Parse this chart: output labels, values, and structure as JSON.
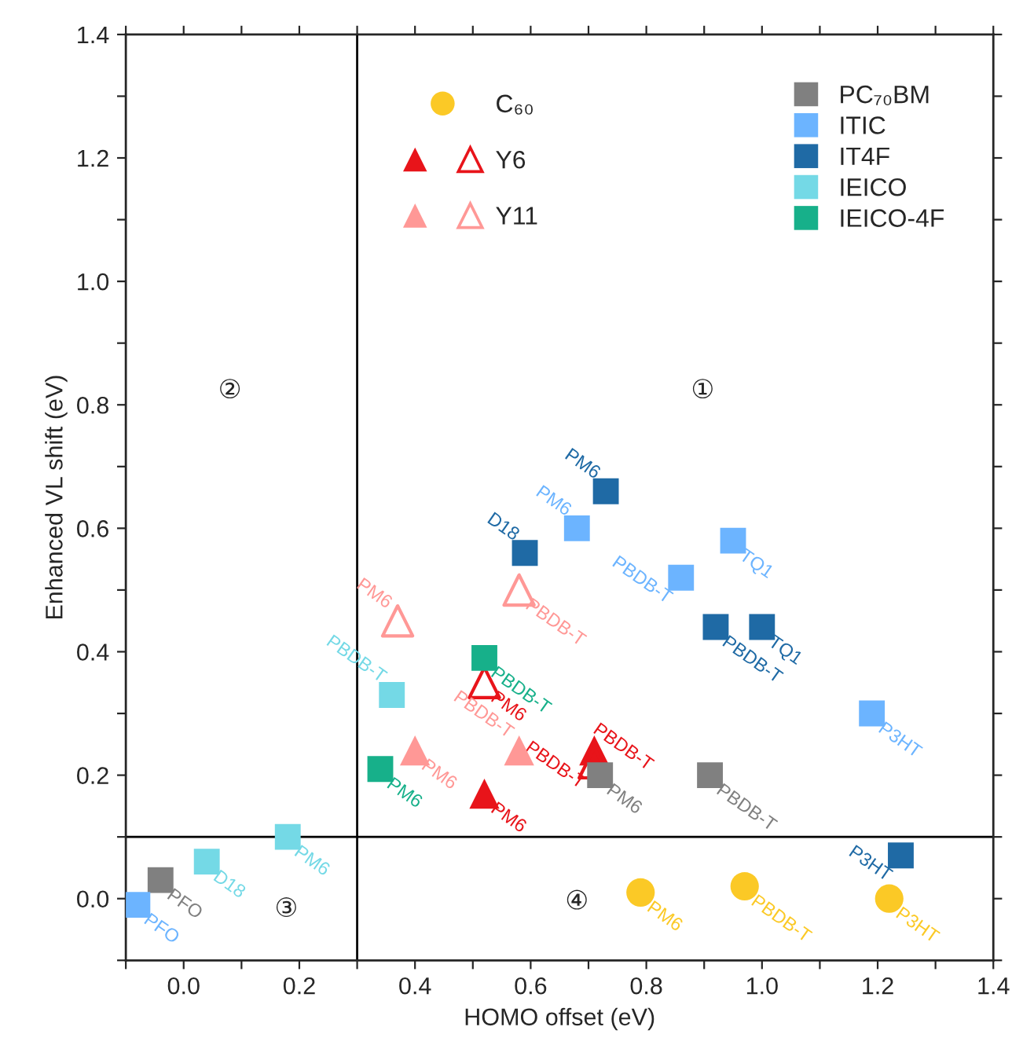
{
  "chart_data": {
    "type": "scatter",
    "xlabel": "HOMO offset (eV)",
    "ylabel": "Enhanced VL shift (eV)",
    "xlim": [
      -0.1,
      1.4
    ],
    "ylim": [
      -0.1,
      1.4
    ],
    "xticks": [
      {
        "value": -0.1,
        "label": null
      },
      {
        "value": 0,
        "label": "0.0"
      },
      {
        "value": 0.1,
        "label": null
      },
      {
        "value": 0.2,
        "label": "0.2"
      },
      {
        "value": 0.3,
        "label": null
      },
      {
        "value": 0.4,
        "label": "0.4"
      },
      {
        "value": 0.5,
        "label": null
      },
      {
        "value": 0.6,
        "label": "0.6"
      },
      {
        "value": 0.7,
        "label": null
      },
      {
        "value": 0.8,
        "label": "0.8"
      },
      {
        "value": 0.9,
        "label": null
      },
      {
        "value": 1.0,
        "label": "1.0"
      },
      {
        "value": 1.1,
        "label": null
      },
      {
        "value": 1.2,
        "label": "1.2"
      },
      {
        "value": 1.3,
        "label": null
      },
      {
        "value": 1.4,
        "label": "1.4"
      }
    ],
    "yticks": [
      {
        "value": -0.1,
        "label": null
      },
      {
        "value": 0,
        "label": "0.0"
      },
      {
        "value": 0.1,
        "label": null
      },
      {
        "value": 0.2,
        "label": "0.2"
      },
      {
        "value": 0.3,
        "label": null
      },
      {
        "value": 0.4,
        "label": "0.4"
      },
      {
        "value": 0.5,
        "label": null
      },
      {
        "value": 0.6,
        "label": "0.6"
      },
      {
        "value": 0.7,
        "label": null
      },
      {
        "value": 0.8,
        "label": "0.8"
      },
      {
        "value": 0.9,
        "label": null
      },
      {
        "value": 1.0,
        "label": "1.0"
      },
      {
        "value": 1.1,
        "label": null
      },
      {
        "value": 1.2,
        "label": "1.2"
      },
      {
        "value": 1.3,
        "label": null
      },
      {
        "value": 1.4,
        "label": "1.4"
      }
    ],
    "grid": false,
    "legend": "top right",
    "ref_lines": [
      {
        "axis": "x",
        "value": 0.3,
        "color": "#000000"
      },
      {
        "axis": "y",
        "value": 0.1,
        "color": "#000000"
      }
    ],
    "annotations": [
      "①",
      "②",
      "③",
      "④"
    ],
    "series": [
      {
        "name": "C₆₀",
        "color": "#fbc926",
        "marker": "circle",
        "x": [
          0.79,
          0.97,
          1.22
        ],
        "values": [
          0.01,
          0.02,
          0.0
        ],
        "value_labels": [
          "PM6",
          "PBDB-T",
          "P3HT"
        ]
      },
      {
        "name": "Y6",
        "color": "#e8141a",
        "marker": "triangle",
        "x": [
          0.52,
          0.71
        ],
        "values": [
          0.17,
          0.24
        ],
        "value_labels": [
          "PM6",
          "PBDB-T"
        ]
      },
      {
        "color": "#e8141a",
        "marker": "triangle",
        "x": [
          0.52,
          0.71
        ],
        "values": [
          0.35,
          0.22
        ],
        "value_labels": [
          "PM6",
          "PBDB-T"
        ]
      },
      {
        "name": "Y11",
        "color": "#ff9896",
        "marker": "triangle",
        "x": [
          0.4,
          0.58
        ],
        "values": [
          0.24,
          0.24
        ],
        "value_labels": [
          "PM6",
          "PBDB-T"
        ]
      },
      {
        "color": "#ff9896",
        "marker": "triangle",
        "x": [
          0.37,
          0.58
        ],
        "values": [
          0.45,
          0.5
        ],
        "value_labels": [
          "PM6",
          "PBDB-T"
        ]
      },
      {
        "name": "PC₇₀BM",
        "color": "#808080",
        "marker": "square",
        "x": [
          -0.04,
          0.72,
          0.91
        ],
        "values": [
          0.03,
          0.2,
          0.2
        ],
        "value_labels": [
          "PFO",
          "PM6",
          "PBDB-T"
        ]
      },
      {
        "name": "ITIC",
        "color": "#6cb4ff",
        "marker": "square",
        "x": [
          -0.08,
          0.68,
          0.86,
          0.95,
          1.19
        ],
        "values": [
          -0.01,
          0.6,
          0.52,
          0.58,
          0.3
        ],
        "value_labels": [
          "PFO",
          "PM6",
          "PBDB-T",
          "TQ1",
          "P3HT"
        ]
      },
      {
        "name": "IT4F",
        "color": "#1f6aa5",
        "marker": "square",
        "x": [
          0.73,
          0.59,
          0.92,
          1.0,
          1.24
        ],
        "values": [
          0.66,
          0.56,
          0.44,
          0.44,
          0.07
        ],
        "value_labels": [
          "PM6",
          "D18",
          "PBDB-T",
          "TQ1",
          "P3HT"
        ]
      },
      {
        "name": "IEICO",
        "color": "#74d9e6",
        "marker": "square",
        "x": [
          0.04,
          0.18,
          0.36
        ],
        "values": [
          0.06,
          0.1,
          0.33
        ],
        "value_labels": [
          "D18",
          "PM6",
          "PBDB-T"
        ]
      },
      {
        "name": "IEICO-4F",
        "color": "#17b08a",
        "marker": "square",
        "x": [
          0.34,
          0.52
        ],
        "values": [
          0.21,
          0.39
        ],
        "value_labels": [
          "PM6",
          "PBDB-T"
        ]
      }
    ]
  }
}
